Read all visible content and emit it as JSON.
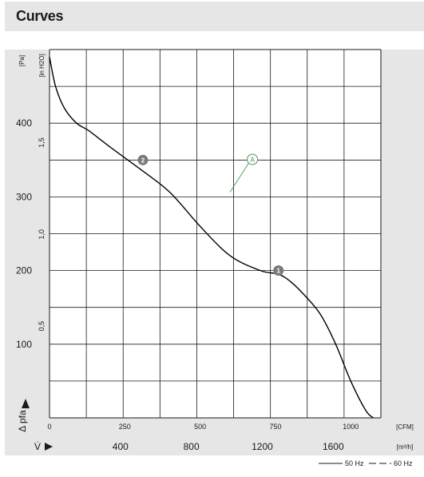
{
  "header": {
    "title": "Curves"
  },
  "chart_data": {
    "type": "line",
    "title": "",
    "xlabel": "V̇",
    "ylabel": "Δ pfa",
    "x_unit_primary": "[CFM]",
    "x_unit_secondary": "[m³/h]",
    "y_unit_primary": "[Pa]",
    "y_unit_secondary": "[in H2O]",
    "xlim": [
      0,
      1100
    ],
    "ylim": [
      0,
      500
    ],
    "x_ticks_primary": [
      0,
      250,
      500,
      750,
      1000
    ],
    "x_ticks_primary_labels": [
      "0",
      "250",
      "500",
      "750",
      "1000"
    ],
    "x_ticks_secondary": [
      400,
      800,
      1200,
      1600
    ],
    "x_ticks_secondary_labels": [
      "400",
      "800",
      "1200",
      "1600"
    ],
    "y_ticks_primary": [
      100,
      200,
      300,
      400
    ],
    "y_ticks_primary_labels": [
      "100",
      "200",
      "300",
      "400"
    ],
    "y_ticks_secondary_labels": [
      "0,5",
      "1,0",
      "1,5"
    ],
    "grid": true,
    "series": [
      {
        "name": "",
        "color": "#000000",
        "x": [
          0,
          20,
          50,
          90,
          130,
          200,
          300,
          400,
          500,
          600,
          700,
          760,
          800,
          850,
          900,
          950,
          1000,
          1050,
          1075
        ],
        "y": [
          490,
          450,
          420,
          400,
          390,
          368,
          338,
          306,
          260,
          220,
          200,
          195,
          185,
          165,
          140,
          100,
          50,
          10,
          0
        ]
      }
    ],
    "markers": [
      {
        "label": "1",
        "x": 760,
        "y": 200,
        "style": "filled-gray"
      },
      {
        "label": "2",
        "x": 310,
        "y": 350,
        "style": "filled-gray"
      },
      {
        "label": "A",
        "x": 610,
        "y": 314,
        "style": "outline-green"
      }
    ],
    "legend": {
      "position": "bottom-right",
      "entries": [
        {
          "label": "50 Hz",
          "line_style": "solid"
        },
        {
          "label": "60 Hz",
          "line_style": "dashed"
        }
      ]
    }
  }
}
